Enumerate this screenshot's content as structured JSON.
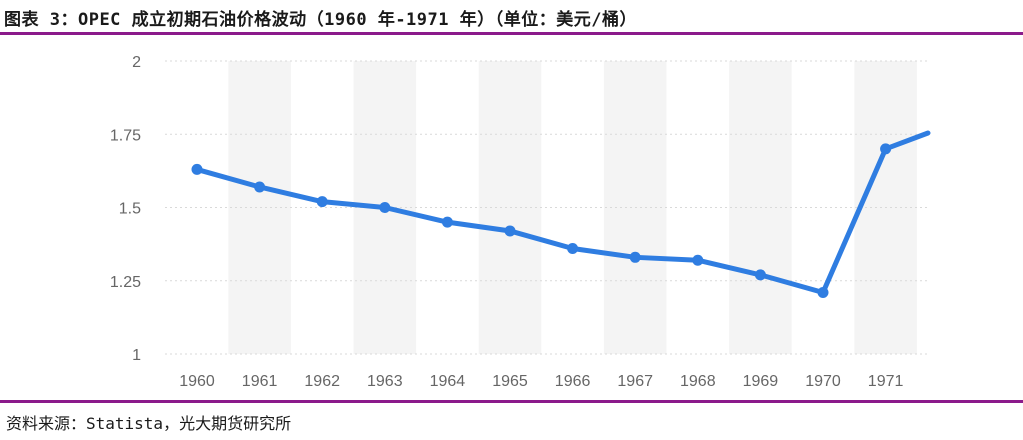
{
  "header": {
    "title": "图表 3：OPEC 成立初期石油价格波动（1960 年-1971 年）（单位：美元/桶）"
  },
  "footer": {
    "source": "资料来源：Statista，光大期货研究所"
  },
  "colors": {
    "accent": "#8b1a8b",
    "line": "#2f7de1",
    "band": "#f4f4f4",
    "grid": "#d9d9d9"
  },
  "chart_data": {
    "type": "line",
    "title": "",
    "xlabel": "",
    "ylabel": "",
    "categories": [
      "1960",
      "1961",
      "1962",
      "1963",
      "1964",
      "1965",
      "1966",
      "1967",
      "1968",
      "1969",
      "1970",
      "1971"
    ],
    "series": [
      {
        "values": [
          1.63,
          1.57,
          1.52,
          1.5,
          1.45,
          1.42,
          1.36,
          1.33,
          1.32,
          1.27,
          1.21,
          1.7
        ]
      }
    ],
    "continuation_value": 1.78,
    "ylim": [
      1,
      2
    ],
    "yticks": [
      1,
      1.25,
      1.5,
      1.75,
      2
    ],
    "ytick_labels": [
      "1",
      "1.25",
      "1.5",
      "1.75",
      "2"
    ],
    "grid": true,
    "legend": "none"
  }
}
